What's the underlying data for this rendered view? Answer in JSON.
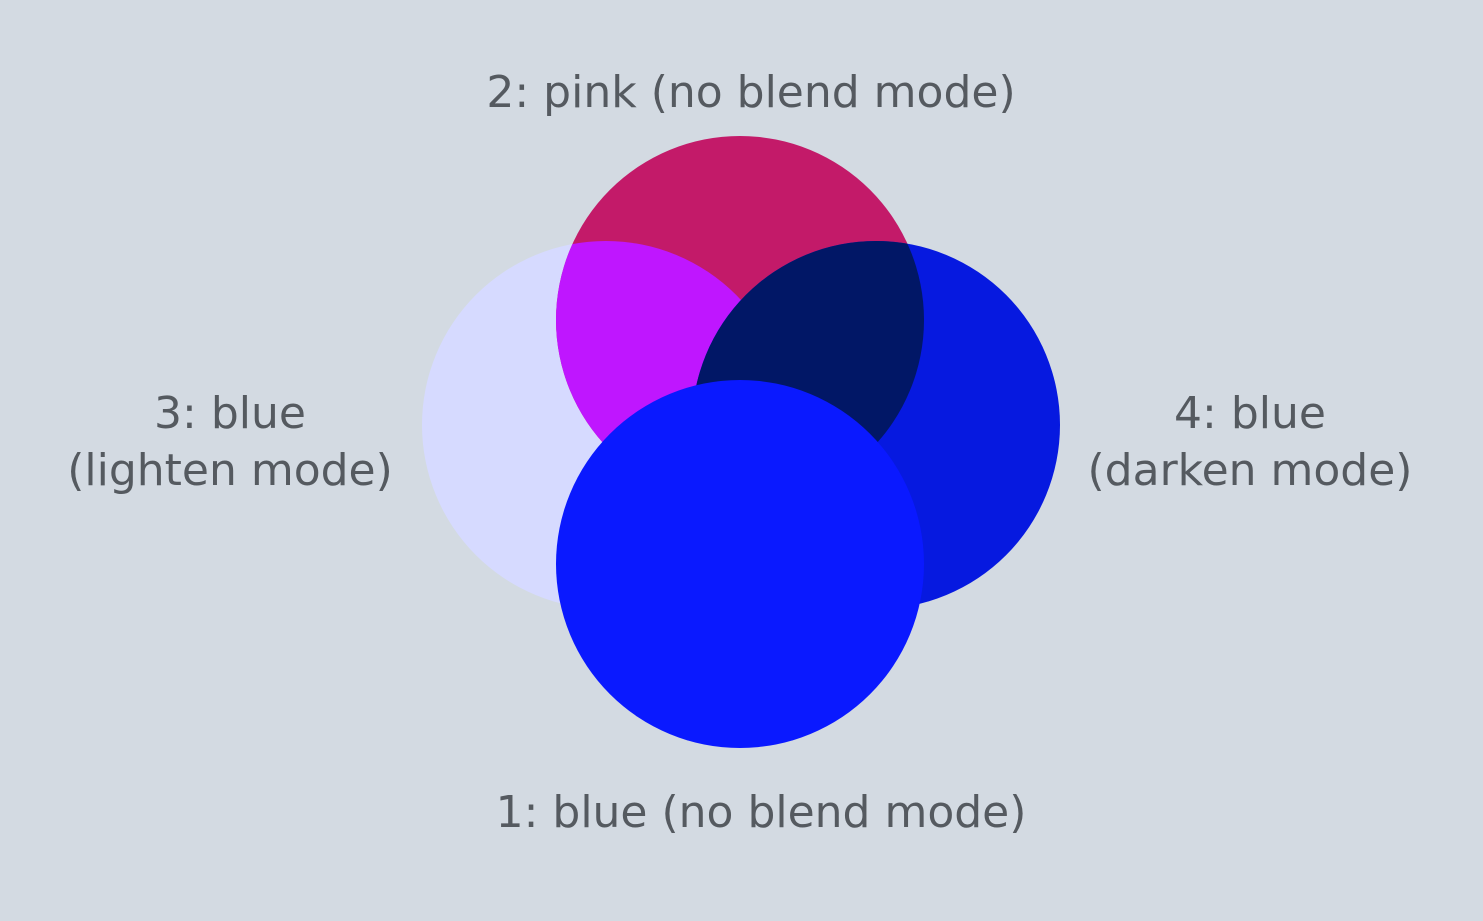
{
  "background": "#d3dae2",
  "circles": [
    {
      "id": "lighten-circle",
      "color": "#d6daff",
      "mode": "lighten"
    },
    {
      "id": "pink-circle",
      "color": "#c31a69",
      "mode": "none"
    },
    {
      "id": "darken-circle",
      "color": "#0619e0",
      "mode": "darken"
    },
    {
      "id": "blue-circle",
      "color": "#0a19ff",
      "mode": "none"
    }
  ],
  "overlap_colors": {
    "lighten_pink": "#bf16ff",
    "darken_pink": "#011766"
  },
  "labels": {
    "pink": "2: pink (no blend mode)",
    "blue1": "1: blue (no blend mode)",
    "lighten_line1": "3: blue",
    "lighten_line2": "(lighten mode)",
    "darken_line1": "4: blue",
    "darken_line2": "(darken mode)"
  }
}
